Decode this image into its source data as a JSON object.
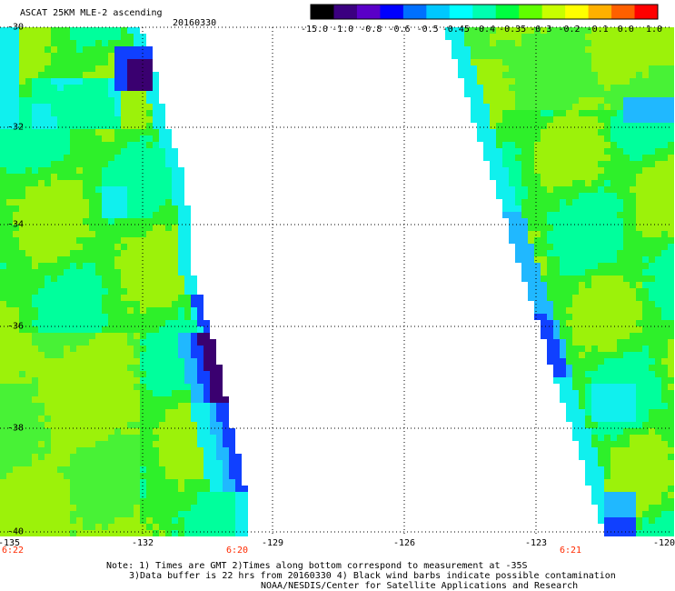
{
  "header": {
    "title": "ASCAT 25KM MLE-2 ascending",
    "date": "20160330"
  },
  "colorbar": {
    "labels": [
      "-15.0",
      "-1.0",
      "-0.8",
      "-0.6",
      "-0.5",
      "-0.45",
      "-0.4",
      "-0.35",
      "-0.3",
      "-0.2",
      "-0.1",
      "0.0",
      "1.0"
    ],
    "colors": [
      "#000000",
      "#3b0080",
      "#5a00c8",
      "#0000ff",
      "#0070ff",
      "#00c8ff",
      "#00ffff",
      "#00ffb0",
      "#00ff40",
      "#60ff00",
      "#c8ff00",
      "#ffff00",
      "#ffb000",
      "#ff6000",
      "#ff0000"
    ]
  },
  "map": {
    "lat_labels": [
      "-30",
      "-32",
      "-34",
      "-36",
      "-38",
      "-40"
    ],
    "lon_labels": [
      "-135",
      "-132",
      "-129",
      "-126",
      "-123",
      "-120"
    ],
    "time_labels": [
      "6:22",
      "6:20",
      "6:21"
    ]
  },
  "notes": {
    "line1": "Note: 1) Times are GMT 2)Times along bottom correspond to measurement at -35S",
    "line2": "3)Data buffer is 22 hrs from 20160330 4) Black wind barbs indicate possible contamination",
    "line3": "NOAA/NESDIS/Center for Satellite Applications and Research"
  }
}
